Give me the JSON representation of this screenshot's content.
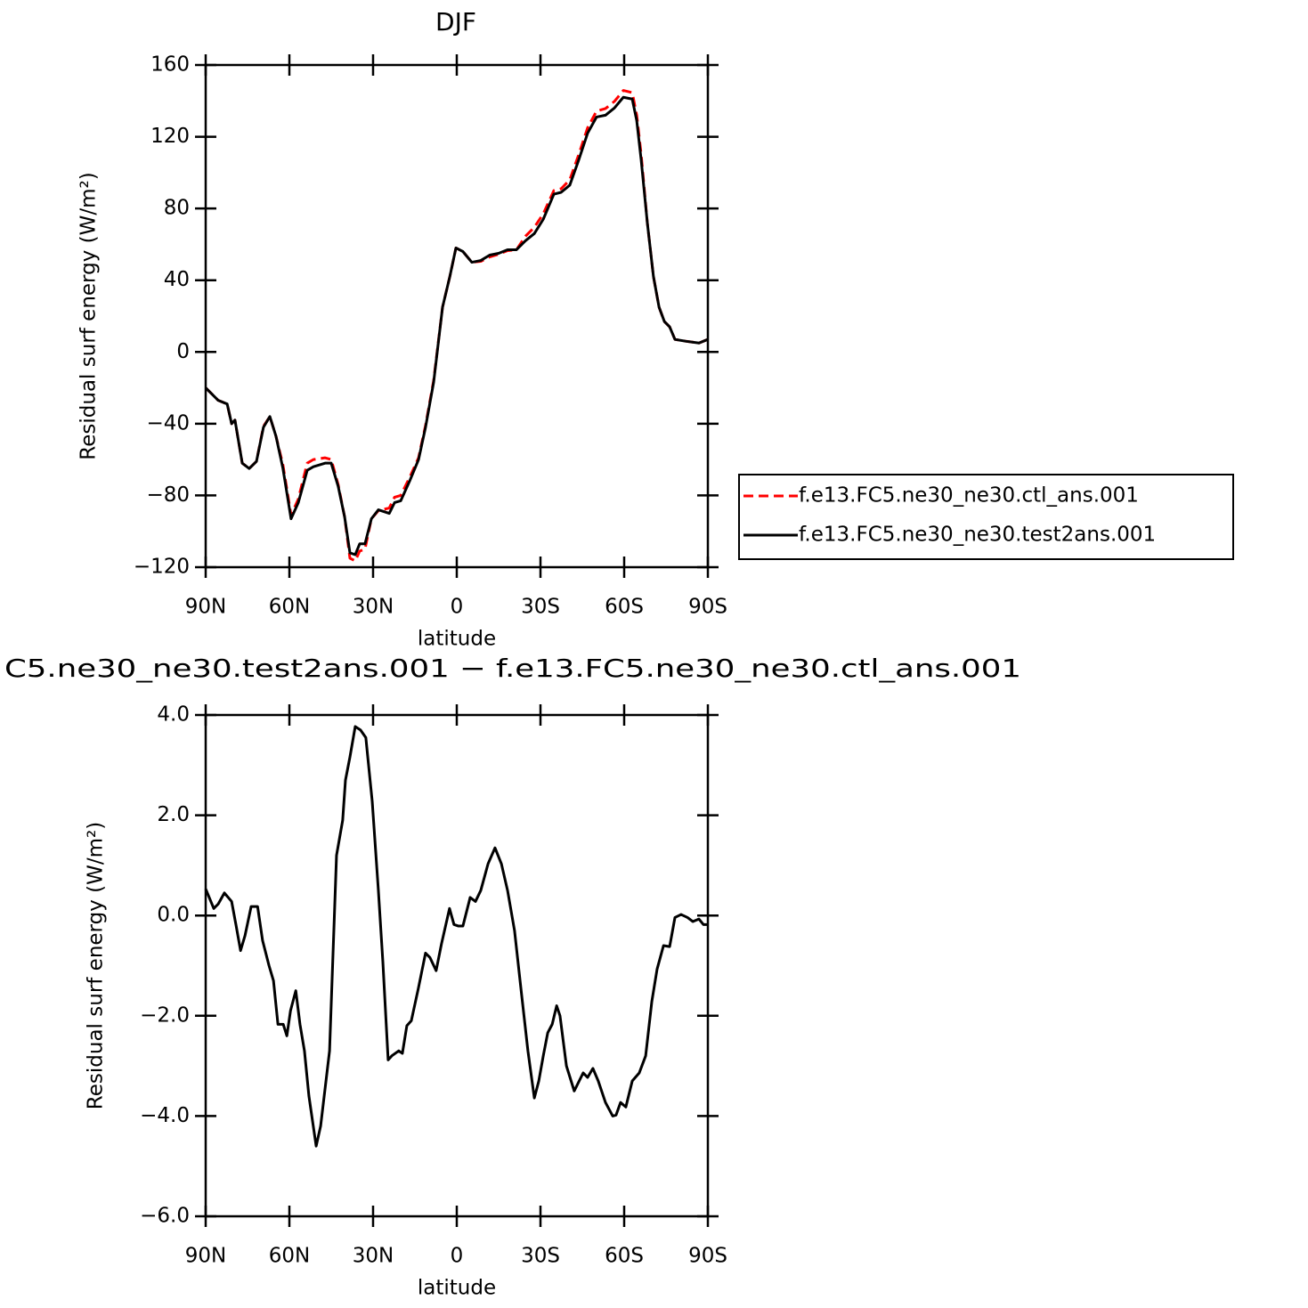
{
  "chart_data": [
    {
      "type": "line",
      "title": "DJF",
      "xlabel": "latitude",
      "ylabel": "Residual surf energy (W/m²)",
      "x": [
        90,
        85.5,
        82.3,
        80.7,
        79.5,
        76.9,
        74.4,
        71.8,
        69.3,
        67.0,
        64.8,
        62.3,
        59.4,
        56.8,
        53.6,
        51.4,
        47.2,
        45.0,
        42.5,
        40.2,
        38.3,
        36.4,
        34.8,
        32.9,
        30.6,
        28.1,
        24.2,
        22.3,
        20.1,
        16.9,
        13.7,
        11.2,
        8.3,
        5.1,
        2.5,
        0.3,
        -2.2,
        -5.4,
        -8.6,
        -11.8,
        -15.0,
        -18.2,
        -21.4,
        -24.6,
        -27.8,
        -31.0,
        -34.8,
        -37.4,
        -40.5,
        -43.7,
        -46.9,
        -50.1,
        -53.3,
        -56.5,
        -59.7,
        -62.9,
        -64.5,
        -66.1,
        -68.3,
        -70.5,
        -72.5,
        -74.4,
        -76.3,
        -78.2,
        -82.0,
        -86.8,
        -90
      ],
      "series": [
        {
          "name": "f.e13.FC5.ne30_ne30.ctl_ans.001",
          "color": "#ff0000",
          "dash": true,
          "values": [
            -20,
            -27,
            -29,
            -40,
            -38,
            -62,
            -65,
            -61,
            -41.5,
            -36,
            -47,
            -63,
            -91,
            -82,
            -62,
            -60,
            -59,
            -60,
            -74,
            -92,
            -115,
            -116.5,
            -111,
            -110,
            -93,
            -88.5,
            -87,
            -81,
            -80,
            -70,
            -59,
            -41,
            -16,
            25,
            42,
            58,
            56,
            50,
            50.5,
            53,
            54.5,
            56.5,
            57,
            64.5,
            69.5,
            77,
            90,
            91,
            96,
            110,
            125,
            134.3,
            135.7,
            139.7,
            145.8,
            144.6,
            132,
            110,
            72,
            42,
            25,
            17,
            14,
            7,
            6,
            5,
            7
          ]
        },
        {
          "name": "f.e13.FC5.ne30_ne30.test2ans.001",
          "color": "#000000",
          "dash": false,
          "values": [
            -20,
            -27,
            -29,
            -40,
            -38,
            -62,
            -65,
            -61,
            -42,
            -36,
            -47,
            -65,
            -93,
            -84,
            -66,
            -64,
            -62,
            -62,
            -75,
            -92,
            -112,
            -113,
            -107,
            -107,
            -93,
            -88,
            -90,
            -84,
            -83,
            -72,
            -60,
            -42,
            -17,
            25,
            42,
            58,
            56,
            50,
            51,
            54,
            55,
            57,
            57,
            62,
            66,
            74,
            88,
            89,
            93,
            107,
            122,
            131,
            132,
            136,
            142,
            141,
            129,
            107,
            72,
            42,
            25,
            17,
            14,
            7,
            6,
            5,
            7
          ]
        }
      ],
      "xlim": [
        90,
        -90
      ],
      "xticks": [
        {
          "value": 90,
          "label": "90N"
        },
        {
          "value": 60,
          "label": "60N"
        },
        {
          "value": 30,
          "label": "30N"
        },
        0,
        {
          "value": -30,
          "label": "30S"
        },
        {
          "value": -60,
          "label": "60S"
        },
        {
          "value": -90,
          "label": "90S"
        }
      ],
      "ylim": [
        -120,
        160
      ],
      "yticks": [
        {
          "value": -120,
          "label": "−120"
        },
        {
          "value": -80,
          "label": "−80"
        },
        {
          "value": -40,
          "label": "−40"
        },
        0,
        40,
        80,
        120,
        160
      ],
      "legend": "right"
    },
    {
      "type": "line",
      "title": "C5.ne30_ne30.test2ans.001 − f.e13.FC5.ne30_ne30.ctl_ans.001",
      "xlabel": "latitude",
      "ylabel": "Residual surf energy (W/m²)",
      "x": [
        90,
        87.1,
        85.5,
        83.3,
        80.7,
        79.1,
        77.5,
        75.9,
        73.7,
        71.4,
        69.6,
        67.3,
        65.7,
        64.1,
        62.2,
        60.9,
        59.6,
        57.7,
        56.2,
        54.6,
        53.0,
        50.4,
        48.8,
        45.6,
        43.1,
        40.9,
        39.9,
        38.3,
        36.4,
        34.5,
        32.6,
        30.3,
        28.1,
        26.5,
        24.6,
        23.3,
        20.8,
        19.5,
        17.9,
        16.3,
        13.8,
        11.2,
        9.6,
        7.4,
        5.5,
        2.6,
        1.0,
        -0.6,
        -2.2,
        -4.8,
        -6.7,
        -8.6,
        -11.2,
        -13.7,
        -16.0,
        -18.2,
        -20.7,
        -23.0,
        -25.5,
        -27.8,
        -29.4,
        -31.0,
        -32.6,
        -34.2,
        -35.8,
        -37.0,
        -39.3,
        -42.1,
        -45.3,
        -46.9,
        -48.8,
        -50.7,
        -53.3,
        -55.9,
        -57.1,
        -58.7,
        -60.6,
        -62.9,
        -65.4,
        -67.7,
        -69.9,
        -71.8,
        -74.1,
        -76.3,
        -78.2,
        -80.4,
        -82.7,
        -84.6,
        -86.8,
        -88.4,
        -90
      ],
      "series": [
        {
          "color": "#000000",
          "dash": false,
          "values": [
            0.53,
            0.14,
            0.23,
            0.45,
            0.28,
            -0.2,
            -0.7,
            -0.4,
            0.18,
            0.18,
            -0.5,
            -1.0,
            -1.3,
            -2.17,
            -2.17,
            -2.4,
            -1.9,
            -1.5,
            -2.17,
            -2.7,
            -3.6,
            -4.6,
            -4.2,
            -2.7,
            1.2,
            1.9,
            2.7,
            3.16,
            3.77,
            3.7,
            3.55,
            2.27,
            0.5,
            -0.92,
            -2.88,
            -2.8,
            -2.7,
            -2.75,
            -2.2,
            -2.1,
            -1.46,
            -0.75,
            -0.84,
            -1.1,
            -0.57,
            0.14,
            -0.18,
            -0.21,
            -0.21,
            0.36,
            0.28,
            0.5,
            1.03,
            1.35,
            1.03,
            0.5,
            -0.3,
            -1.46,
            -2.7,
            -3.64,
            -3.3,
            -2.8,
            -2.34,
            -2.17,
            -1.8,
            -2.0,
            -3.0,
            -3.5,
            -3.14,
            -3.23,
            -3.05,
            -3.3,
            -3.73,
            -4.0,
            -3.98,
            -3.73,
            -3.82,
            -3.3,
            -3.14,
            -2.8,
            -1.72,
            -1.07,
            -0.6,
            -0.62,
            -0.04,
            0.02,
            -0.04,
            -0.12,
            -0.07,
            -0.18,
            -0.18
          ]
        }
      ],
      "xlim": [
        90,
        -90
      ],
      "xticks": [
        {
          "value": 90,
          "label": "90N"
        },
        {
          "value": 60,
          "label": "60N"
        },
        {
          "value": 30,
          "label": "30N"
        },
        0,
        {
          "value": -30,
          "label": "30S"
        },
        {
          "value": -60,
          "label": "60S"
        },
        {
          "value": -90,
          "label": "90S"
        }
      ],
      "ylim": [
        -6,
        4
      ],
      "yticks": [
        {
          "value": -6,
          "label": "−6.0"
        },
        {
          "value": -4,
          "label": "−4.0"
        },
        {
          "value": -2,
          "label": "−2.0"
        },
        {
          "value": 0,
          "label": "0.0"
        },
        {
          "value": 2,
          "label": "2.0"
        },
        {
          "value": 4,
          "label": "4.0"
        }
      ]
    }
  ]
}
